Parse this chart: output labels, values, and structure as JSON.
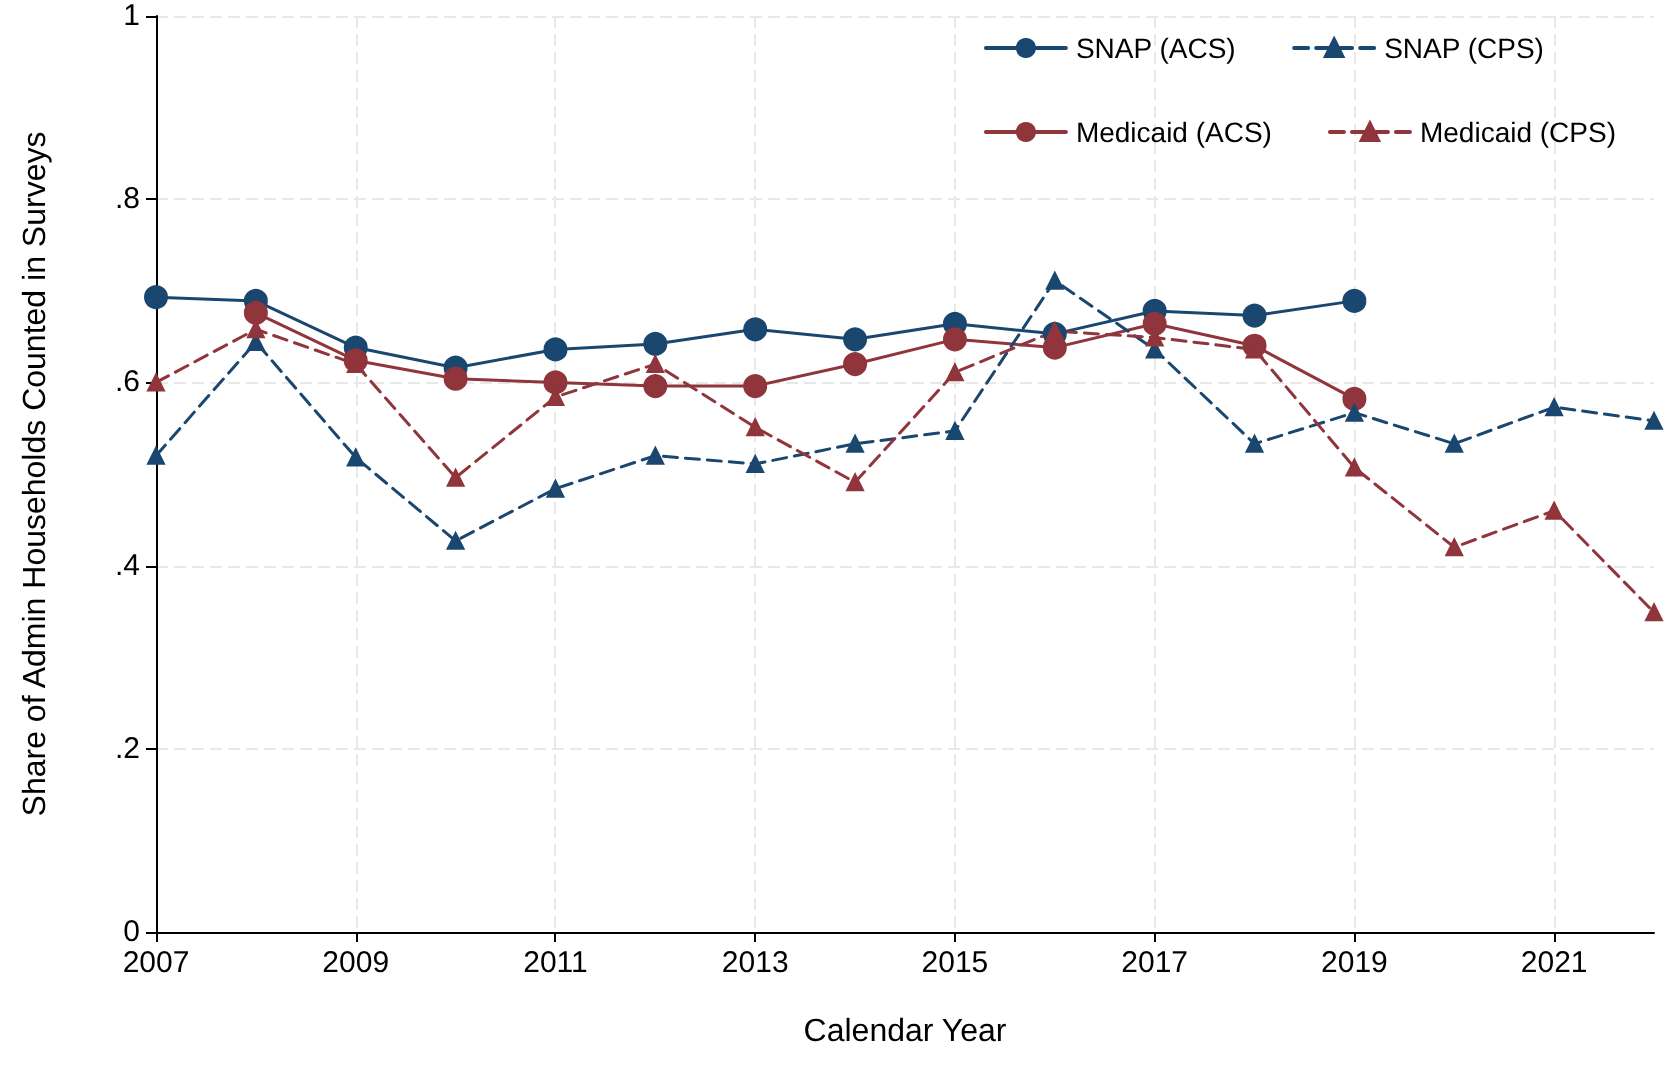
{
  "chart_data": {
    "type": "line",
    "xlabel": "Calendar Year",
    "ylabel": "Share of Admin Households Counted in Surveys",
    "x": [
      2007,
      2008,
      2009,
      2010,
      2011,
      2012,
      2013,
      2014,
      2015,
      2016,
      2017,
      2018,
      2019,
      2020,
      2021,
      2022
    ],
    "xlim": [
      2007,
      2022
    ],
    "xticks": [
      2007,
      2009,
      2011,
      2013,
      2015,
      2017,
      2019,
      2021
    ],
    "ylim": [
      0,
      1
    ],
    "yticks": [
      {
        "value": 0,
        "label": "0"
      },
      {
        "value": 0.2,
        "label": ".2"
      },
      {
        "value": 0.4,
        "label": ".4"
      },
      {
        "value": 0.6,
        "label": ".6"
      },
      {
        "value": 0.8,
        "label": ".8"
      },
      {
        "value": 1,
        "label": "1"
      }
    ],
    "grid": true,
    "legend": "top right",
    "series": [
      {
        "name": "SNAP (ACS)",
        "color": "#1a476f",
        "marker": "circle",
        "line_style": "solid",
        "values": [
          0.693,
          0.689,
          0.638,
          0.616,
          0.636,
          0.642,
          0.658,
          0.647,
          0.664,
          0.653,
          0.678,
          0.673,
          0.689,
          null,
          null,
          null
        ]
      },
      {
        "name": "Medicaid (ACS)",
        "color": "#90353b",
        "marker": "circle",
        "line_style": "solid",
        "values": [
          null,
          0.676,
          0.624,
          0.604,
          0.6,
          0.596,
          0.596,
          0.62,
          0.647,
          0.638,
          0.664,
          0.64,
          0.582,
          null,
          null,
          null
        ]
      },
      {
        "name": "SNAP (CPS)",
        "color": "#1a476f",
        "marker": "triangle",
        "line_style": "dashed",
        "values": [
          0.52,
          0.644,
          0.518,
          0.427,
          0.484,
          0.52,
          0.511,
          0.533,
          0.547,
          0.711,
          0.636,
          0.533,
          0.567,
          0.533,
          0.573,
          0.558
        ]
      },
      {
        "name": "Medicaid (CPS)",
        "color": "#90353b",
        "marker": "triangle",
        "line_style": "dashed",
        "values": [
          0.6,
          0.658,
          0.62,
          0.496,
          0.584,
          0.62,
          0.551,
          0.491,
          0.611,
          0.656,
          0.649,
          0.636,
          0.507,
          0.42,
          0.46,
          0.349
        ]
      }
    ]
  }
}
